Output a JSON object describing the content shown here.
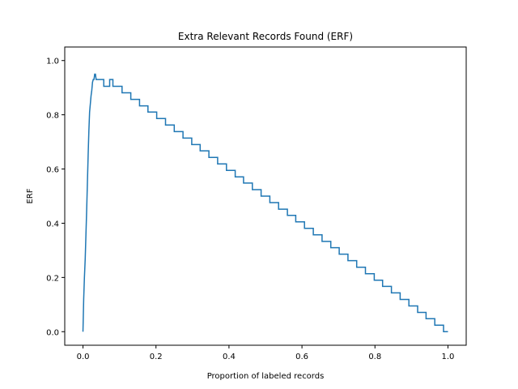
{
  "chart_data": {
    "type": "line",
    "drawstyle": "steps",
    "title": "Extra Relevant Records Found (ERF)",
    "xlabel": "Proportion of labeled records",
    "ylabel": "ERF",
    "xlim": [
      -0.05,
      1.05
    ],
    "ylim": [
      -0.05,
      1.05
    ],
    "xticks": [
      0.0,
      0.2,
      0.4,
      0.6,
      0.8,
      1.0
    ],
    "xtick_labels": [
      "0.0",
      "0.2",
      "0.4",
      "0.6",
      "0.8",
      "1.0"
    ],
    "yticks": [
      0.0,
      0.2,
      0.4,
      0.6,
      0.8,
      1.0
    ],
    "ytick_labels": [
      "0.0",
      "0.2",
      "0.4",
      "0.6",
      "0.8",
      "1.0"
    ],
    "grid": false,
    "legend": null,
    "series": [
      {
        "name": "ERF",
        "color": "#1f77b4",
        "x": [
          0.0,
          0.002,
          0.004,
          0.006,
          0.008,
          0.01,
          0.012,
          0.014,
          0.016,
          0.018,
          0.02,
          0.022,
          0.024,
          0.026,
          0.028,
          0.03,
          0.032,
          0.034,
          0.036,
          0.057,
          0.057,
          0.073,
          0.073,
          0.082,
          0.082,
          0.107,
          0.107,
          0.131,
          0.131,
          0.155,
          0.155,
          0.178,
          0.178,
          0.202,
          0.202,
          0.226,
          0.226,
          0.25,
          0.25,
          0.274,
          0.274,
          0.298,
          0.298,
          0.321,
          0.321,
          0.345,
          0.345,
          0.369,
          0.369,
          0.393,
          0.393,
          0.417,
          0.417,
          0.44,
          0.44,
          0.464,
          0.464,
          0.488,
          0.488,
          0.512,
          0.512,
          0.536,
          0.536,
          0.56,
          0.56,
          0.583,
          0.583,
          0.607,
          0.607,
          0.631,
          0.631,
          0.655,
          0.655,
          0.679,
          0.679,
          0.702,
          0.702,
          0.726,
          0.726,
          0.75,
          0.75,
          0.774,
          0.774,
          0.798,
          0.798,
          0.821,
          0.821,
          0.845,
          0.845,
          0.869,
          0.869,
          0.893,
          0.893,
          0.917,
          0.917,
          0.94,
          0.94,
          0.964,
          0.964,
          0.988,
          0.988,
          1.0
        ],
        "y": [
          0.0,
          0.12,
          0.2,
          0.27,
          0.36,
          0.45,
          0.55,
          0.65,
          0.74,
          0.81,
          0.84,
          0.87,
          0.89,
          0.92,
          0.93,
          0.93,
          0.95,
          0.95,
          0.93,
          0.93,
          0.905,
          0.905,
          0.93,
          0.93,
          0.905,
          0.905,
          0.881,
          0.881,
          0.857,
          0.857,
          0.833,
          0.833,
          0.81,
          0.81,
          0.786,
          0.786,
          0.762,
          0.762,
          0.738,
          0.738,
          0.714,
          0.714,
          0.69,
          0.69,
          0.667,
          0.667,
          0.643,
          0.643,
          0.619,
          0.619,
          0.595,
          0.595,
          0.571,
          0.571,
          0.548,
          0.548,
          0.524,
          0.524,
          0.5,
          0.5,
          0.476,
          0.476,
          0.452,
          0.452,
          0.429,
          0.429,
          0.405,
          0.405,
          0.381,
          0.381,
          0.357,
          0.357,
          0.333,
          0.333,
          0.31,
          0.31,
          0.286,
          0.286,
          0.262,
          0.262,
          0.238,
          0.238,
          0.214,
          0.214,
          0.19,
          0.19,
          0.167,
          0.167,
          0.143,
          0.143,
          0.119,
          0.119,
          0.095,
          0.095,
          0.071,
          0.071,
          0.048,
          0.048,
          0.024,
          0.024,
          0.0,
          0.0
        ]
      }
    ]
  }
}
